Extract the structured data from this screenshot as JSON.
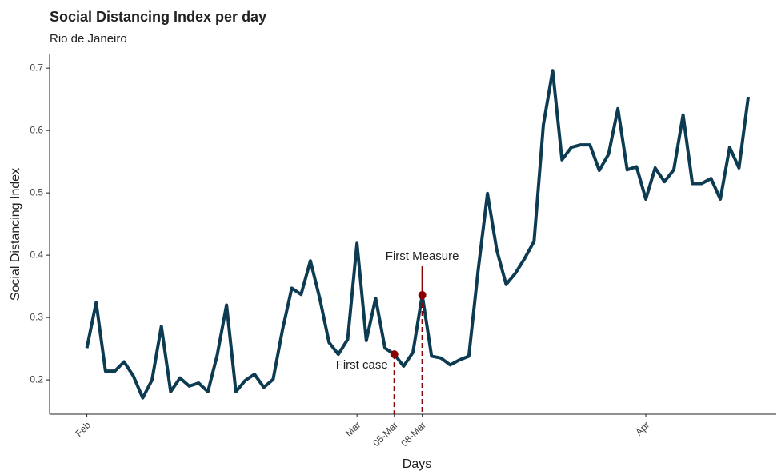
{
  "chart_data": {
    "type": "line",
    "title": "Social Distancing Index per day",
    "subtitle": "Rio de Janeiro",
    "xlabel": "Days",
    "ylabel": "Social Distancing Index",
    "color": "#0d3b52",
    "x": [
      "01-Feb",
      "02-Feb",
      "03-Feb",
      "04-Feb",
      "05-Feb",
      "06-Feb",
      "07-Feb",
      "08-Feb",
      "09-Feb",
      "10-Feb",
      "11-Feb",
      "12-Feb",
      "13-Feb",
      "14-Feb",
      "15-Feb",
      "16-Feb",
      "17-Feb",
      "18-Feb",
      "19-Feb",
      "20-Feb",
      "21-Feb",
      "22-Feb",
      "23-Feb",
      "24-Feb",
      "25-Feb",
      "26-Feb",
      "27-Feb",
      "28-Feb",
      "29-Feb",
      "01-Mar",
      "02-Mar",
      "03-Mar",
      "04-Mar",
      "05-Mar",
      "06-Mar",
      "07-Mar",
      "08-Mar",
      "09-Mar",
      "10-Mar",
      "11-Mar",
      "12-Mar",
      "13-Mar",
      "14-Mar",
      "15-Mar",
      "16-Mar",
      "17-Mar",
      "18-Mar",
      "19-Mar",
      "20-Mar",
      "21-Mar",
      "22-Mar",
      "23-Mar",
      "24-Mar",
      "25-Mar",
      "26-Mar",
      "27-Mar",
      "28-Mar",
      "29-Mar",
      "30-Mar",
      "31-Mar",
      "01-Apr",
      "02-Apr",
      "03-Apr",
      "04-Apr",
      "05-Apr",
      "06-Apr",
      "07-Apr",
      "08-Apr",
      "09-Apr",
      "10-Apr",
      "11-Apr",
      "12-Apr"
    ],
    "values": [
      0.251,
      0.324,
      0.214,
      0.214,
      0.229,
      0.206,
      0.171,
      0.2,
      0.286,
      0.181,
      0.203,
      0.19,
      0.195,
      0.181,
      0.24,
      0.32,
      0.181,
      0.199,
      0.209,
      0.188,
      0.201,
      0.28,
      0.347,
      0.337,
      0.391,
      0.331,
      0.26,
      0.241,
      0.265,
      0.419,
      0.263,
      0.331,
      0.251,
      0.241,
      0.222,
      0.244,
      0.336,
      0.238,
      0.235,
      0.224,
      0.232,
      0.238,
      0.376,
      0.499,
      0.408,
      0.353,
      0.371,
      0.395,
      0.422,
      0.609,
      0.696,
      0.553,
      0.573,
      0.577,
      0.577,
      0.536,
      0.562,
      0.635,
      0.537,
      0.542,
      0.49,
      0.54,
      0.518,
      0.537,
      0.625,
      0.515,
      0.515,
      0.523,
      0.49,
      0.573,
      0.54,
      0.654
    ],
    "xlim": [
      "28-Jan",
      "15-Apr"
    ],
    "xticks": [
      {
        "value": "01-Feb",
        "label": "Feb"
      },
      {
        "value": "01-Mar",
        "label": "Mar"
      },
      "05-Mar",
      "08-Mar",
      {
        "value": "01-Apr",
        "label": "Apr"
      }
    ],
    "ylim": [
      0.145,
      0.722
    ],
    "yticks": [
      0.2,
      0.3,
      0.4,
      0.5,
      0.6,
      0.7
    ],
    "grid": false,
    "annotation_color": "#8b0000",
    "annotations": [
      {
        "text": "First case",
        "x": "05-Mar",
        "y": 0.241
      },
      {
        "text": "First Measure",
        "x": "08-Mar",
        "y": 0.336
      }
    ]
  }
}
